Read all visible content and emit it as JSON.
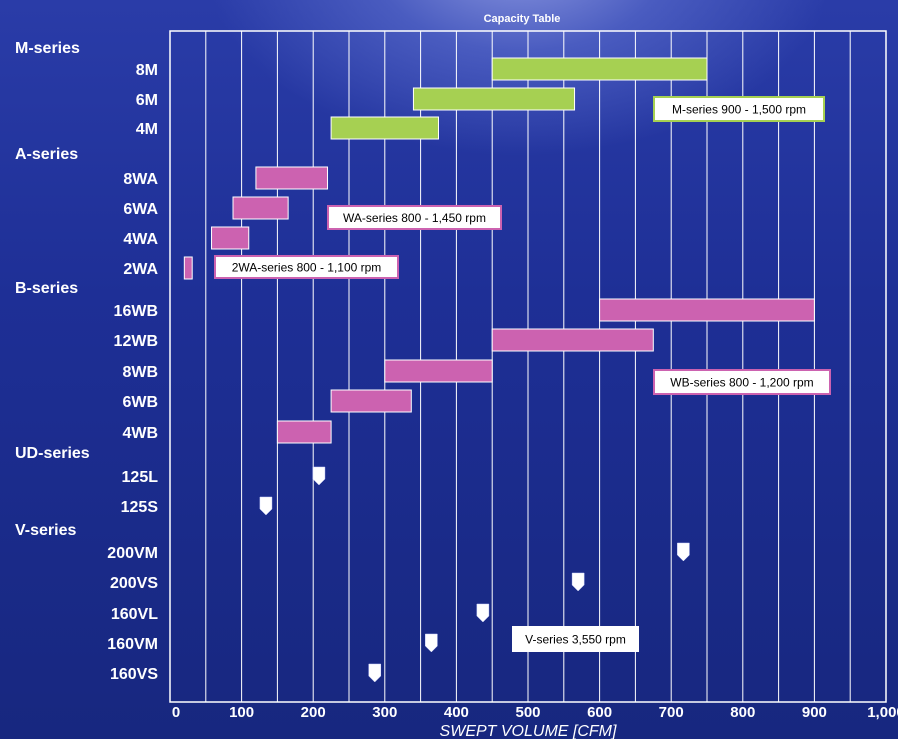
{
  "chart_data": {
    "type": "bar",
    "title": "Capacity Table",
    "xlabel": "SWEPT VOLUME [CFM]",
    "xlim": [
      0,
      1000
    ],
    "xticks": [
      "0",
      "100",
      "200",
      "300",
      "400",
      "500",
      "600",
      "700",
      "800",
      "900",
      "1,000"
    ],
    "grid": "vertical every 50",
    "colors": {
      "m_series": "#a6d052",
      "ab_series": "#cc62b0",
      "marker": "#ffffff",
      "grid": "#ffffff"
    },
    "groups": [
      {
        "name": "M-series",
        "rows": [
          {
            "label": "8M",
            "range": [
              450,
              750
            ]
          },
          {
            "label": "6M",
            "range": [
              340,
              565
            ]
          },
          {
            "label": "4M",
            "range": [
              225,
              375
            ]
          }
        ]
      },
      {
        "name": "A-series",
        "rows": [
          {
            "label": "8WA",
            "range": [
              120,
              220
            ]
          },
          {
            "label": "6WA",
            "range": [
              88,
              165
            ]
          },
          {
            "label": "4WA",
            "range": [
              58,
              110
            ]
          },
          {
            "label": "2WA",
            "range": [
              20,
              31
            ]
          }
        ]
      },
      {
        "name": "B-series",
        "rows": [
          {
            "label": "16WB",
            "range": [
              600,
              900
            ]
          },
          {
            "label": "12WB",
            "range": [
              450,
              675
            ]
          },
          {
            "label": "8WB",
            "range": [
              300,
              450
            ]
          },
          {
            "label": "6WB",
            "range": [
              225,
              337
            ]
          },
          {
            "label": "4WB",
            "range": [
              150,
              225
            ]
          }
        ]
      },
      {
        "name": "UD-series",
        "rows": [
          {
            "label": "125L",
            "point": 208
          },
          {
            "label": "125S",
            "point": 134
          }
        ]
      },
      {
        "name": "V-series",
        "rows": [
          {
            "label": "200VM",
            "point": 717
          },
          {
            "label": "200VS",
            "point": 570
          },
          {
            "label": "160VL",
            "point": 437
          },
          {
            "label": "160VM",
            "point": 365
          },
          {
            "label": "160VS",
            "point": 286
          }
        ]
      }
    ],
    "annotations": [
      {
        "text": "M-series 900 - 1,500 rpm"
      },
      {
        "text": "WA-series 800 - 1,450 rpm"
      },
      {
        "text": "2WA-series 800 - 1,100 rpm"
      },
      {
        "text": "WB-series 800 - 1,200 rpm"
      },
      {
        "text": "V-series 3,550 rpm"
      }
    ]
  }
}
